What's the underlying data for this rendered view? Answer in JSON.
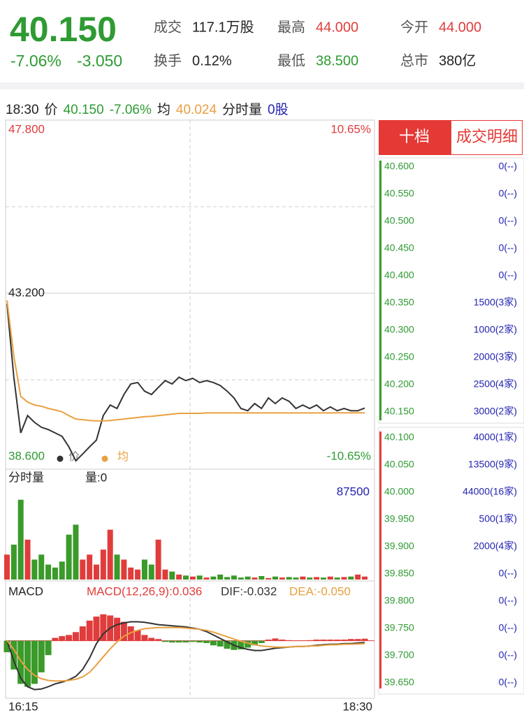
{
  "quote": {
    "price": "40.150",
    "change_pct": "-7.06%",
    "change_amt": "-3.050",
    "color": "#2e9b33"
  },
  "stats": [
    {
      "label": "成交",
      "value": "117.1万股",
      "color": "#222222"
    },
    {
      "label": "最高",
      "value": "44.000",
      "color": "#e03c3c"
    },
    {
      "label": "今开",
      "value": "44.000",
      "color": "#e03c3c"
    },
    {
      "label": "换手",
      "value": "0.12%",
      "color": "#222222"
    },
    {
      "label": "最低",
      "value": "38.500",
      "color": "#2e9b33"
    },
    {
      "label": "总市",
      "value": "380亿",
      "color": "#222222"
    }
  ],
  "info_bar": [
    {
      "text": "18:30",
      "color": "#222222"
    },
    {
      "text": "价",
      "color": "#222222"
    },
    {
      "text": "40.150",
      "color": "#2e9b33"
    },
    {
      "text": "-7.06%",
      "color": "#2e9b33"
    },
    {
      "text": "均",
      "color": "#222222"
    },
    {
      "text": "40.024",
      "color": "#e8a040"
    },
    {
      "text": "分时量",
      "color": "#222222"
    },
    {
      "text": "0股",
      "color": "#2323b0"
    }
  ],
  "time_axis": [
    "16:15",
    "18:30"
  ],
  "chart_data": [
    {
      "type": "line",
      "ylim": [
        38.6,
        47.8
      ],
      "yticks": [
        {
          "value": 47.8,
          "label": "47.800"
        },
        {
          "value": 43.2,
          "label": "43.200"
        },
        {
          "value": 38.6,
          "label": "38.600"
        }
      ],
      "ytick_colors": [
        "#e03c3c",
        "#222222",
        "#2e9b33"
      ],
      "y2lim": [
        -10.65,
        10.65
      ],
      "y2ticks": [
        {
          "value": 10.65,
          "label": "10.65%"
        },
        {
          "value": -10.65,
          "label": "-10.65%"
        }
      ],
      "y2tick_colors": [
        "#e03c3c",
        "#2e9b33"
      ],
      "series": [
        {
          "name": "价",
          "color": "#333333",
          "values": [
            42.92,
            40.97,
            39.49,
            39.95,
            39.77,
            39.64,
            39.58,
            39.49,
            39.4,
            39.12,
            38.75,
            38.93,
            39.12,
            39.3,
            39.95,
            40.23,
            40.14,
            40.51,
            40.79,
            40.83,
            40.6,
            40.51,
            40.7,
            40.88,
            40.79,
            40.97,
            40.88,
            40.94,
            40.83,
            40.88,
            40.83,
            40.75,
            40.6,
            40.42,
            40.14,
            40.08,
            40.27,
            40.14,
            40.42,
            40.27,
            40.42,
            40.33,
            40.14,
            40.23,
            40.14,
            40.23,
            40.08,
            40.18,
            40.08,
            40.14,
            40.08,
            40.08,
            40.15
          ]
        },
        {
          "name": "均",
          "color": "#e8a040",
          "values": [
            43.01,
            41.53,
            40.46,
            40.31,
            40.23,
            40.2,
            40.14,
            40.1,
            40.05,
            39.95,
            39.86,
            39.84,
            39.82,
            39.81,
            39.81,
            39.82,
            39.84,
            39.86,
            39.88,
            39.9,
            39.92,
            39.93,
            39.95,
            39.97,
            39.99,
            40.01,
            40.01,
            40.01,
            40.01,
            40.02,
            40.02,
            40.02,
            40.02,
            40.02,
            40.02,
            40.02,
            40.02,
            40.02,
            40.02,
            40.02,
            40.02,
            40.02,
            40.02,
            40.02,
            40.02,
            40.02,
            40.02,
            40.02,
            40.024,
            40.024,
            40.024,
            40.024,
            40.024
          ]
        }
      ]
    },
    {
      "type": "bar",
      "title": "分时量",
      "subtitle": "量:0",
      "ylim": [
        0,
        87500
      ],
      "yticks": [
        87500
      ],
      "up_color": "#e03c3c",
      "down_color": "#3a9a2a",
      "values": [
        25000,
        35000,
        80000,
        40000,
        20000,
        25000,
        15000,
        12000,
        18000,
        45000,
        55000,
        20000,
        25000,
        15000,
        30000,
        50000,
        25000,
        20000,
        12000,
        10000,
        20000,
        15000,
        40000,
        10000,
        8000,
        5000,
        4000,
        3000,
        4000,
        2000,
        3000,
        5000,
        2500,
        4000,
        2000,
        3000,
        2000,
        3500,
        1500,
        3000,
        2000,
        2500,
        2000,
        3000,
        2000,
        2500,
        2000,
        3000,
        2000,
        2500,
        3000,
        5000,
        3000
      ]
    },
    {
      "type": "macd",
      "title": "MACD",
      "ylim": [
        -1.0,
        0.7
      ],
      "up_color": "#e03c3c",
      "down_color": "#3a9a2a",
      "series": [
        {
          "name": "MACD(12,26,9):0.036",
          "color": "#e03c3c",
          "values": [
            -0.2,
            -0.5,
            -0.75,
            -0.8,
            -0.75,
            -0.55,
            -0.25,
            0.05,
            0.08,
            0.1,
            0.15,
            0.25,
            0.35,
            0.42,
            0.46,
            0.44,
            0.4,
            0.33,
            0.25,
            0.18,
            0.1,
            0.05,
            0.03,
            -0.02,
            -0.03,
            -0.03,
            -0.03,
            -0.02,
            -0.03,
            -0.04,
            -0.08,
            -0.1,
            -0.14,
            -0.16,
            -0.15,
            -0.12,
            -0.08,
            -0.04,
            0.02,
            0.04,
            0.02,
            0.01,
            0.005,
            0.005,
            0.01,
            0.02,
            0.02,
            0.02,
            0.02,
            0.02,
            0.03,
            0.03,
            0.036
          ]
        },
        {
          "name": "DIF:-0.032",
          "color": "#333333",
          "values": [
            0.0,
            -0.35,
            -0.65,
            -0.8,
            -0.85,
            -0.84,
            -0.8,
            -0.75,
            -0.72,
            -0.68,
            -0.62,
            -0.5,
            -0.3,
            -0.05,
            0.12,
            0.22,
            0.28,
            0.31,
            0.33,
            0.33,
            0.32,
            0.3,
            0.28,
            0.27,
            0.26,
            0.25,
            0.24,
            0.22,
            0.2,
            0.16,
            0.1,
            0.04,
            -0.02,
            -0.08,
            -0.12,
            -0.15,
            -0.17,
            -0.17,
            -0.15,
            -0.13,
            -0.12,
            -0.11,
            -0.1,
            -0.1,
            -0.09,
            -0.08,
            -0.07,
            -0.06,
            -0.06,
            -0.05,
            -0.05,
            -0.04,
            -0.032
          ]
        },
        {
          "name": "DEA:-0.050",
          "color": "#e8a040",
          "values": [
            0.0,
            -0.15,
            -0.35,
            -0.5,
            -0.6,
            -0.66,
            -0.69,
            -0.7,
            -0.7,
            -0.69,
            -0.67,
            -0.63,
            -0.55,
            -0.42,
            -0.28,
            -0.14,
            -0.02,
            0.08,
            0.14,
            0.18,
            0.21,
            0.22,
            0.23,
            0.23,
            0.23,
            0.23,
            0.22,
            0.21,
            0.2,
            0.18,
            0.15,
            0.11,
            0.07,
            0.03,
            -0.01,
            -0.04,
            -0.07,
            -0.09,
            -0.1,
            -0.11,
            -0.11,
            -0.11,
            -0.1,
            -0.1,
            -0.09,
            -0.09,
            -0.08,
            -0.07,
            -0.07,
            -0.06,
            -0.06,
            -0.055,
            -0.05
          ]
        }
      ]
    }
  ],
  "order_book": {
    "tabs": [
      "十档",
      "成交明细"
    ],
    "price_color": "#2e9b33",
    "volume_color": "#2323b0",
    "asks": [
      {
        "price": "40.600",
        "volume": "0(--)"
      },
      {
        "price": "40.550",
        "volume": "0(--)"
      },
      {
        "price": "40.500",
        "volume": "0(--)"
      },
      {
        "price": "40.450",
        "volume": "0(--)"
      },
      {
        "price": "40.400",
        "volume": "0(--)"
      },
      {
        "price": "40.350",
        "volume": "1500(3家)"
      },
      {
        "price": "40.300",
        "volume": "1000(2家)"
      },
      {
        "price": "40.250",
        "volume": "2000(3家)"
      },
      {
        "price": "40.200",
        "volume": "2500(4家)"
      },
      {
        "price": "40.150",
        "volume": "3000(2家)"
      }
    ],
    "bids": [
      {
        "price": "40.100",
        "volume": "4000(1家)"
      },
      {
        "price": "40.050",
        "volume": "13500(9家)"
      },
      {
        "price": "40.000",
        "volume": "44000(16家)"
      },
      {
        "price": "39.950",
        "volume": "500(1家)"
      },
      {
        "price": "39.900",
        "volume": "2000(4家)"
      },
      {
        "price": "39.850",
        "volume": "0(--)"
      },
      {
        "price": "39.800",
        "volume": "0(--)"
      },
      {
        "price": "39.750",
        "volume": "0(--)"
      },
      {
        "price": "39.700",
        "volume": "0(--)"
      },
      {
        "price": "39.650",
        "volume": "0(--)"
      }
    ]
  }
}
